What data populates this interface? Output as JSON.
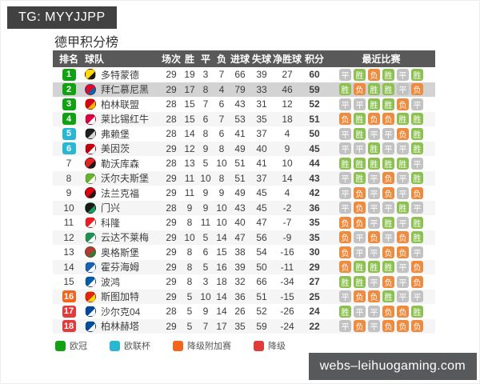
{
  "tg_badge": "TG: MYYJJPP",
  "title": "德甲积分榜",
  "watermark": "webs–leihuogaming.com",
  "recent_labels": {
    "W": "胜",
    "D": "平",
    "L": "负"
  },
  "colors": {
    "result": {
      "W": "#8cc152",
      "D": "#c2c2c2",
      "L": "#ef8b3f"
    },
    "zones": {
      "ucl": "#12a112",
      "uel": "#29b7d3",
      "playoff": "#f2651d",
      "relegation": "#e13b3b"
    },
    "header_bg": "#595959",
    "highlight_row_bg": "#d3d3d3"
  },
  "legend": [
    {
      "label": "欧冠",
      "color": "#12a112"
    },
    {
      "label": "欧联杯",
      "color": "#29b7d3"
    },
    {
      "label": "降级附加赛",
      "color": "#f2651d"
    },
    {
      "label": "降级",
      "color": "#e13b3b"
    }
  ],
  "table": {
    "headers": [
      "排名",
      "球队",
      "场次",
      "胜",
      "平",
      "负",
      "进球",
      "失球",
      "净胜球",
      "积分",
      "最近比赛"
    ],
    "rows": [
      {
        "rank": 1,
        "zone": "ucl",
        "team": "多特蒙德",
        "logo": [
          "#ffd900",
          "#1a1a1a"
        ],
        "played": 29,
        "win": 19,
        "draw": 3,
        "loss": 7,
        "gf": 66,
        "ga": 39,
        "gd": 27,
        "pts": 60,
        "recent": [
          "D",
          "W",
          "L",
          "W",
          "D",
          "W"
        ],
        "highlight": false
      },
      {
        "rank": 2,
        "zone": "ucl",
        "team": "拜仁慕尼黑",
        "logo": [
          "#dd0a30",
          "#0066b2"
        ],
        "played": 29,
        "win": 17,
        "draw": 8,
        "loss": 4,
        "gf": 79,
        "ga": 33,
        "gd": 46,
        "pts": 59,
        "recent": [
          "W",
          "L",
          "W",
          "W",
          "D",
          "L"
        ],
        "highlight": true
      },
      {
        "rank": 3,
        "zone": "ucl",
        "team": "柏林联盟",
        "logo": [
          "#d4011d",
          "#f9b200"
        ],
        "played": 28,
        "win": 15,
        "draw": 7,
        "loss": 6,
        "gf": 43,
        "ga": 31,
        "gd": 12,
        "pts": 52,
        "recent": [
          "D",
          "D",
          "W",
          "W",
          "L",
          "D"
        ],
        "highlight": false
      },
      {
        "rank": 4,
        "zone": "ucl",
        "team": "莱比锡红牛",
        "logo": [
          "#dd013f",
          "#ffffff"
        ],
        "played": 28,
        "win": 15,
        "draw": 6,
        "loss": 7,
        "gf": 53,
        "ga": 35,
        "gd": 18,
        "pts": 51,
        "recent": [
          "L",
          "W",
          "L",
          "L",
          "W",
          "W"
        ],
        "highlight": false
      },
      {
        "rank": 5,
        "zone": "uel",
        "team": "弗赖堡",
        "logo": [
          "#1f1f1f",
          "#d6d6d6"
        ],
        "played": 28,
        "win": 14,
        "draw": 8,
        "loss": 6,
        "gf": 41,
        "ga": 37,
        "gd": 4,
        "pts": 50,
        "recent": [
          "D",
          "W",
          "D",
          "D",
          "L",
          "W"
        ],
        "highlight": false
      },
      {
        "rank": 6,
        "zone": "uel",
        "team": "美因茨",
        "logo": [
          "#c3000d",
          "#ffffff"
        ],
        "played": 29,
        "win": 12,
        "draw": 9,
        "loss": 8,
        "gf": 49,
        "ga": 40,
        "gd": 9,
        "pts": 45,
        "recent": [
          "D",
          "D",
          "W",
          "D",
          "D",
          "W"
        ],
        "highlight": false
      },
      {
        "rank": 7,
        "zone": null,
        "team": "勒沃库森",
        "logo": [
          "#e32221",
          "#1a1a1a"
        ],
        "played": 28,
        "win": 13,
        "draw": 5,
        "loss": 10,
        "gf": 51,
        "ga": 41,
        "gd": 10,
        "pts": 44,
        "recent": [
          "W",
          "W",
          "W",
          "W",
          "W",
          "D"
        ],
        "highlight": false
      },
      {
        "rank": 8,
        "zone": null,
        "team": "沃尔夫斯堡",
        "logo": [
          "#65b32e",
          "#ffffff"
        ],
        "played": 29,
        "win": 11,
        "draw": 10,
        "loss": 8,
        "gf": 51,
        "ga": 37,
        "gd": 14,
        "pts": 43,
        "recent": [
          "D",
          "W",
          "D",
          "L",
          "D",
          "W"
        ],
        "highlight": false
      },
      {
        "rank": 9,
        "zone": null,
        "team": "法兰克福",
        "logo": [
          "#e1000f",
          "#1a1a1a"
        ],
        "played": 29,
        "win": 11,
        "draw": 9,
        "loss": 9,
        "gf": 49,
        "ga": 45,
        "gd": 4,
        "pts": 42,
        "recent": [
          "D",
          "L",
          "D",
          "L",
          "D",
          "L"
        ],
        "highlight": false
      },
      {
        "rank": 10,
        "zone": null,
        "team": "门兴",
        "logo": [
          "#1a1a1a",
          "#19a05c"
        ],
        "played": 28,
        "win": 9,
        "draw": 9,
        "loss": 10,
        "gf": 43,
        "ga": 45,
        "gd": -2,
        "pts": 36,
        "recent": [
          "D",
          "L",
          "D",
          "D",
          "W",
          "D"
        ],
        "highlight": false
      },
      {
        "rank": 11,
        "zone": null,
        "team": "科隆",
        "logo": [
          "#ed1c24",
          "#ffffff"
        ],
        "played": 29,
        "win": 8,
        "draw": 11,
        "loss": 10,
        "gf": 40,
        "ga": 47,
        "gd": -7,
        "pts": 35,
        "recent": [
          "L",
          "L",
          "D",
          "W",
          "D",
          "W"
        ],
        "highlight": false
      },
      {
        "rank": 12,
        "zone": null,
        "team": "云达不莱梅",
        "logo": [
          "#1d9053",
          "#ffffff"
        ],
        "played": 29,
        "win": 10,
        "draw": 5,
        "loss": 14,
        "gf": 47,
        "ga": 56,
        "gd": -9,
        "pts": 35,
        "recent": [
          "L",
          "D",
          "L",
          "D",
          "L",
          "W"
        ],
        "highlight": false
      },
      {
        "rank": 13,
        "zone": null,
        "team": "奥格斯堡",
        "logo": [
          "#ba3733",
          "#2e7d32"
        ],
        "played": 29,
        "win": 8,
        "draw": 6,
        "loss": 15,
        "gf": 38,
        "ga": 54,
        "gd": -16,
        "pts": 30,
        "recent": [
          "L",
          "D",
          "D",
          "L",
          "L",
          "D"
        ],
        "highlight": false
      },
      {
        "rank": 14,
        "zone": null,
        "team": "霍芬海姆",
        "logo": [
          "#1961b5",
          "#ffffff"
        ],
        "played": 29,
        "win": 8,
        "draw": 5,
        "loss": 16,
        "gf": 39,
        "ga": 50,
        "gd": -11,
        "pts": 29,
        "recent": [
          "L",
          "W",
          "W",
          "W",
          "D",
          "L"
        ],
        "highlight": false
      },
      {
        "rank": 15,
        "zone": null,
        "team": "波鸿",
        "logo": [
          "#005ca9",
          "#ffffff"
        ],
        "played": 29,
        "win": 8,
        "draw": 3,
        "loss": 18,
        "gf": 32,
        "ga": 66,
        "gd": -34,
        "pts": 27,
        "recent": [
          "W",
          "W",
          "D",
          "L",
          "D",
          "L"
        ],
        "highlight": false
      },
      {
        "rank": 16,
        "zone": "playoff",
        "team": "斯图加特",
        "logo": [
          "#e32219",
          "#fddc02"
        ],
        "played": 29,
        "win": 5,
        "draw": 10,
        "loss": 14,
        "gf": 36,
        "ga": 51,
        "gd": -15,
        "pts": 25,
        "recent": [
          "D",
          "L",
          "L",
          "W",
          "D",
          "D"
        ],
        "highlight": false
      },
      {
        "rank": 17,
        "zone": "relegation",
        "team": "沙尔克04",
        "logo": [
          "#004a9d",
          "#ffffff"
        ],
        "played": 28,
        "win": 5,
        "draw": 9,
        "loss": 14,
        "gf": 26,
        "ga": 52,
        "gd": -26,
        "pts": 24,
        "recent": [
          "W",
          "D",
          "D",
          "L",
          "L",
          "W"
        ],
        "highlight": false
      },
      {
        "rank": 18,
        "zone": "relegation",
        "team": "柏林赫塔",
        "logo": [
          "#004d9e",
          "#ffffff"
        ],
        "played": 29,
        "win": 5,
        "draw": 7,
        "loss": 17,
        "gf": 35,
        "ga": 59,
        "gd": -24,
        "pts": 22,
        "recent": [
          "D",
          "L",
          "D",
          "L",
          "L",
          "L"
        ],
        "highlight": false
      }
    ]
  }
}
